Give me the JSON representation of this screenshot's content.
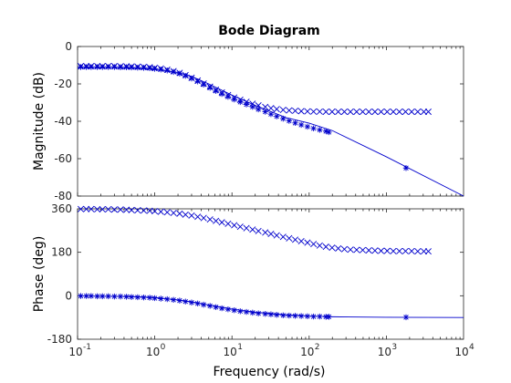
{
  "chart_data": {
    "type": "line",
    "title": "Bode Diagram",
    "xlabel": "Frequency  (rad/s)",
    "x_scale": "log",
    "xlim": [
      0.1,
      10000
    ],
    "x_tick_labels": [
      "10",
      "10",
      "10",
      "10",
      "10",
      "10"
    ],
    "x_tick_exponents": [
      "-1",
      "0",
      "1",
      "2",
      "3",
      "4"
    ],
    "x_tick_values": [
      0.1,
      1,
      10,
      100,
      1000,
      10000
    ],
    "color": "#0000cc",
    "grid": false,
    "panels": [
      {
        "name": "magnitude",
        "ylabel": "Magnitude (dB)",
        "ylim": [
          -80,
          0
        ],
        "y_ticks": [
          0,
          -20,
          -40,
          -60,
          -80
        ],
        "y_tick_labels": [
          "0",
          "-20",
          "-40",
          "-60",
          "-80"
        ],
        "series": [
          {
            "style": "line",
            "x": [
              0.1,
              0.3,
              1,
              2,
              3,
              5,
              10,
              20,
              50,
              100,
              200,
              1000,
              10000
            ],
            "y": [
              -11,
              -11,
              -12,
              -14,
              -16,
              -20,
              -26,
              -31.5,
              -38,
              -41,
              -45,
              -59,
              -80
            ]
          },
          {
            "style": "asterisk",
            "x": [
              0.11,
              0.13,
              0.15,
              0.18,
              0.21,
              0.25,
              0.3,
              0.36,
              0.43,
              0.5,
              0.6,
              0.72,
              0.86,
              1.0,
              1.2,
              1.45,
              1.75,
              2.1,
              2.5,
              3.0,
              3.6,
              4.3,
              5.2,
              6.2,
              7.4,
              8.9,
              10.7,
              12.8,
              15.4,
              18.5,
              22,
              27,
              32,
              38,
              46,
              55,
              66,
              79,
              95,
              114,
              137,
              165,
              180,
              1800
            ],
            "y": [
              -11.0,
              -11.0,
              -11.0,
              -11.0,
              -11.0,
              -11.0,
              -11.0,
              -11.1,
              -11.1,
              -11.2,
              -11.3,
              -11.4,
              -11.6,
              -11.9,
              -12.3,
              -12.8,
              -13.6,
              -14.5,
              -15.7,
              -17.1,
              -18.7,
              -20.4,
              -22.1,
              -23.8,
              -25.4,
              -26.9,
              -28.3,
              -29.7,
              -31.0,
              -32.3,
              -33.6,
              -34.9,
              -36.2,
              -37.4,
              -38.6,
              -39.8,
              -40.9,
              -41.9,
              -42.9,
              -43.8,
              -44.6,
              -45.3,
              -45.8,
              -65.0
            ]
          },
          {
            "style": "x",
            "x": [
              0.11,
              0.13,
              0.15,
              0.18,
              0.21,
              0.25,
              0.3,
              0.36,
              0.43,
              0.5,
              0.6,
              0.72,
              0.86,
              1.0,
              1.2,
              1.45,
              1.75,
              2.1,
              2.5,
              3.0,
              3.6,
              4.3,
              5.2,
              6.2,
              7.4,
              8.9,
              10.7,
              12.8,
              15.4,
              18.5,
              22,
              27,
              32,
              38,
              46,
              55,
              66,
              79,
              95,
              114,
              137,
              165,
              198,
              238,
              286,
              343,
              412,
              494,
              593,
              712,
              854,
              1025,
              1230,
              1476,
              1771,
              2125,
              2550,
              3060,
              3500
            ],
            "y": [
              -10.5,
              -10.5,
              -10.5,
              -10.5,
              -10.5,
              -10.5,
              -10.5,
              -10.6,
              -10.6,
              -10.7,
              -10.8,
              -10.9,
              -11.1,
              -11.4,
              -11.8,
              -12.4,
              -13.2,
              -14.1,
              -15.3,
              -16.7,
              -18.2,
              -19.8,
              -21.5,
              -23.1,
              -24.6,
              -26.0,
              -27.3,
              -28.5,
              -29.6,
              -30.6,
              -31.5,
              -32.3,
              -33.0,
              -33.5,
              -33.9,
              -34.2,
              -34.4,
              -34.6,
              -34.7,
              -34.8,
              -34.8,
              -34.9,
              -34.9,
              -34.9,
              -34.9,
              -34.9,
              -34.9,
              -34.9,
              -34.9,
              -34.9,
              -34.9,
              -34.9,
              -34.9,
              -34.9,
              -34.9,
              -34.9,
              -34.9,
              -34.9,
              -34.9
            ]
          }
        ]
      },
      {
        "name": "phase",
        "ylabel": "Phase (deg)",
        "ylim": [
          -180,
          360
        ],
        "y_ticks": [
          360,
          180,
          0,
          -180
        ],
        "y_tick_labels": [
          "360",
          "180",
          "0",
          "-180"
        ],
        "series": [
          {
            "style": "line",
            "x": [
              0.1,
              0.5,
              1,
              2,
              3,
              5,
              10,
              20,
              50,
              100,
              200,
              1000,
              10000
            ],
            "y": [
              -1,
              -3,
              -7,
              -17,
              -25,
              -38,
              -55,
              -68,
              -79,
              -84,
              -87,
              -89,
              -90
            ]
          },
          {
            "style": "asterisk",
            "x": [
              0.11,
              0.13,
              0.15,
              0.18,
              0.21,
              0.25,
              0.3,
              0.36,
              0.43,
              0.5,
              0.6,
              0.72,
              0.86,
              1.0,
              1.2,
              1.45,
              1.75,
              2.1,
              2.5,
              3.0,
              3.6,
              4.3,
              5.2,
              6.2,
              7.4,
              8.9,
              10.7,
              12.8,
              15.4,
              18.5,
              22,
              27,
              32,
              38,
              46,
              55,
              66,
              79,
              95,
              114,
              137,
              165,
              180,
              1800
            ],
            "y": [
              -1,
              -1,
              -1,
              -2,
              -2,
              -2,
              -3,
              -3,
              -4,
              -5,
              -6,
              -7,
              -8,
              -10,
              -12,
              -14,
              -17,
              -20,
              -24,
              -28,
              -32,
              -37,
              -42,
              -47,
              -52,
              -56,
              -60,
              -64,
              -67,
              -70,
              -73,
              -75,
              -77,
              -79,
              -81,
              -82,
              -83,
              -84,
              -85,
              -86,
              -86,
              -87,
              -87,
              -89
            ]
          },
          {
            "style": "x",
            "x": [
              0.11,
              0.13,
              0.15,
              0.18,
              0.21,
              0.25,
              0.3,
              0.36,
              0.43,
              0.5,
              0.6,
              0.72,
              0.86,
              1.0,
              1.2,
              1.45,
              1.75,
              2.1,
              2.5,
              3.0,
              3.6,
              4.3,
              5.2,
              6.2,
              7.4,
              8.9,
              10.7,
              12.8,
              15.4,
              18.5,
              22,
              27,
              32,
              38,
              46,
              55,
              66,
              79,
              95,
              114,
              137,
              165,
              198,
              238,
              286,
              343,
              412,
              494,
              593,
              712,
              854,
              1025,
              1230,
              1476,
              1771,
              2125,
              2550,
              3060,
              3500
            ],
            "y": [
              359,
              359,
              359,
              358,
              358,
              358,
              357,
              357,
              356,
              355,
              354,
              353,
              352,
              350,
              348,
              346,
              343,
              340,
              336,
              332,
              327,
              322,
              316,
              310,
              304,
              298,
              292,
              286,
              280,
              274,
              268,
              262,
              256,
              250,
              244,
              238,
              232,
              226,
              220,
              214,
              208,
              203,
              199,
              196,
              193,
              191,
              190,
              189,
              188,
              187,
              186,
              186,
              185,
              185,
              185,
              185,
              184,
              184,
              184
            ]
          }
        ]
      }
    ]
  }
}
